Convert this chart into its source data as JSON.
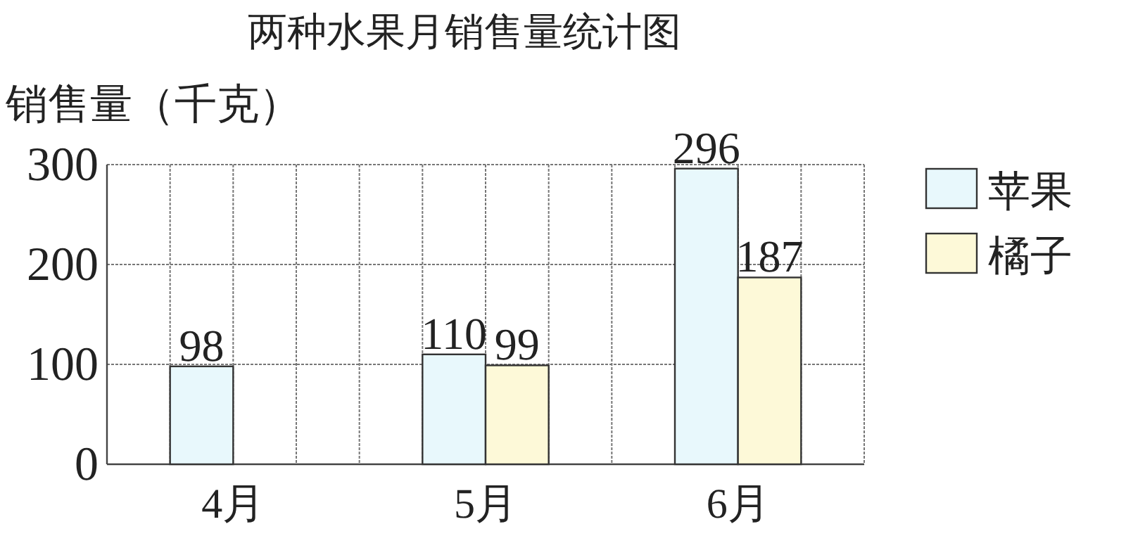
{
  "chart_data": {
    "type": "bar",
    "title": "两种水果月销售量统计图",
    "ylabel": "销售量（千克）",
    "categories": [
      "4月",
      "5月",
      "6月"
    ],
    "series": [
      {
        "name": "苹果",
        "color": "#e8f8fc",
        "values": [
          98,
          110,
          296
        ]
      },
      {
        "name": "橘子",
        "color": "#fdf9d8",
        "values": [
          null,
          99,
          187
        ]
      }
    ],
    "ylim": [
      0,
      300
    ],
    "yticks": [
      0,
      100,
      200,
      300
    ],
    "grid": true,
    "legend": "right",
    "data_labels": true
  }
}
